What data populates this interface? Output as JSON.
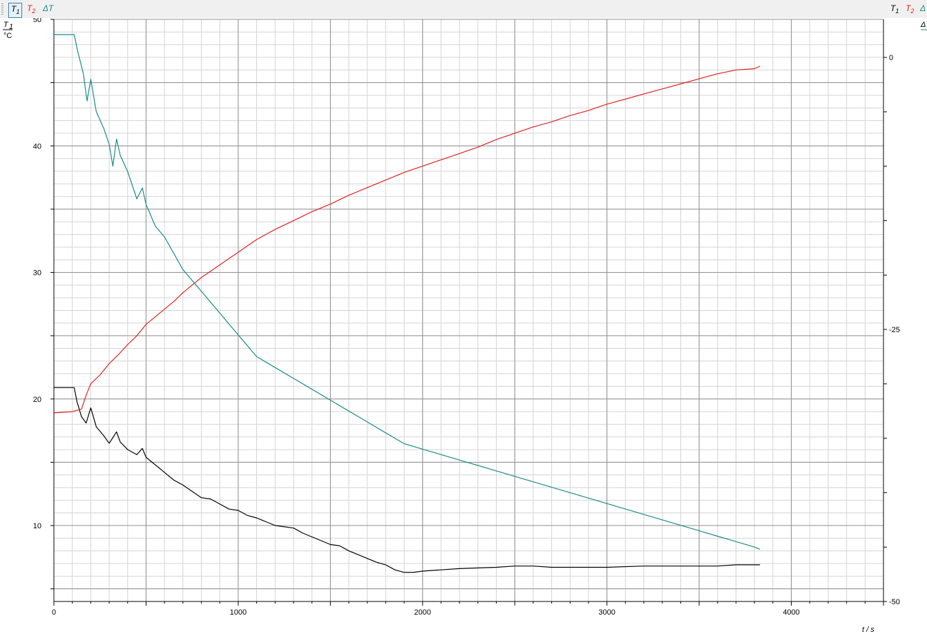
{
  "toolbar": {
    "left_items": [
      {
        "base": "T",
        "sub": "1",
        "color": "#000000",
        "selected": true
      },
      {
        "base": "T",
        "sub": "2",
        "color": "#e02020",
        "selected": false
      },
      {
        "base": "ΔT",
        "sub": "",
        "color": "#1a8a8a",
        "selected": false
      }
    ],
    "right_items": [
      {
        "base": "T",
        "sub": "1",
        "color": "#000000"
      },
      {
        "base": "T",
        "sub": "2",
        "color": "#e02020"
      },
      {
        "base": "Δ",
        "sub": "",
        "color": "#1a8a8a"
      }
    ]
  },
  "chart_data": {
    "type": "line",
    "xlabel": "t / s",
    "ylabel_left": {
      "symbol": "T",
      "sub": "1",
      "unit": "°C"
    },
    "ylabel_right": {
      "symbol": "Δ",
      "unit": ""
    },
    "xlim": [
      0,
      4500
    ],
    "ylim_left": [
      4,
      50
    ],
    "ylim_right": [
      -50,
      3.5
    ],
    "x_ticks": [
      0,
      1000,
      2000,
      3000,
      4000
    ],
    "y_ticks_left": [
      10,
      20,
      30,
      40,
      50
    ],
    "y_ticks_right": [
      -50,
      -25,
      0
    ],
    "grid": true,
    "series": [
      {
        "name": "T1",
        "axis": "left",
        "color": "#000000",
        "points": [
          [
            0,
            20.9
          ],
          [
            110,
            20.9
          ],
          [
            125,
            19.8
          ],
          [
            150,
            18.6
          ],
          [
            175,
            18.1
          ],
          [
            200,
            19.3
          ],
          [
            230,
            17.8
          ],
          [
            270,
            17.1
          ],
          [
            300,
            16.5
          ],
          [
            340,
            17.4
          ],
          [
            360,
            16.6
          ],
          [
            400,
            16.0
          ],
          [
            450,
            15.6
          ],
          [
            480,
            16.1
          ],
          [
            500,
            15.4
          ],
          [
            550,
            14.8
          ],
          [
            600,
            14.2
          ],
          [
            650,
            13.6
          ],
          [
            700,
            13.2
          ],
          [
            750,
            12.7
          ],
          [
            800,
            12.2
          ],
          [
            850,
            12.1
          ],
          [
            900,
            11.7
          ],
          [
            950,
            11.3
          ],
          [
            1000,
            11.2
          ],
          [
            1050,
            10.8
          ],
          [
            1100,
            10.6
          ],
          [
            1150,
            10.3
          ],
          [
            1200,
            10.0
          ],
          [
            1300,
            9.8
          ],
          [
            1350,
            9.4
          ],
          [
            1400,
            9.1
          ],
          [
            1450,
            8.8
          ],
          [
            1500,
            8.5
          ],
          [
            1550,
            8.4
          ],
          [
            1600,
            8.0
          ],
          [
            1650,
            7.7
          ],
          [
            1700,
            7.4
          ],
          [
            1750,
            7.1
          ],
          [
            1800,
            6.9
          ],
          [
            1850,
            6.5
          ],
          [
            1900,
            6.3
          ],
          [
            1950,
            6.3
          ],
          [
            2000,
            6.4
          ],
          [
            2100,
            6.5
          ],
          [
            2200,
            6.6
          ],
          [
            2400,
            6.7
          ],
          [
            2500,
            6.8
          ],
          [
            2600,
            6.8
          ],
          [
            2700,
            6.7
          ],
          [
            2800,
            6.7
          ],
          [
            3000,
            6.7
          ],
          [
            3200,
            6.8
          ],
          [
            3400,
            6.8
          ],
          [
            3600,
            6.8
          ],
          [
            3700,
            6.9
          ],
          [
            3830,
            6.9
          ]
        ]
      },
      {
        "name": "T2",
        "axis": "left",
        "color": "#e02020",
        "points": [
          [
            0,
            18.9
          ],
          [
            100,
            19.0
          ],
          [
            150,
            19.2
          ],
          [
            175,
            20.3
          ],
          [
            200,
            21.2
          ],
          [
            250,
            21.9
          ],
          [
            300,
            22.8
          ],
          [
            350,
            23.5
          ],
          [
            400,
            24.3
          ],
          [
            450,
            25.0
          ],
          [
            500,
            25.9
          ],
          [
            550,
            26.5
          ],
          [
            600,
            27.1
          ],
          [
            650,
            27.7
          ],
          [
            700,
            28.4
          ],
          [
            750,
            29.0
          ],
          [
            800,
            29.6
          ],
          [
            850,
            30.1
          ],
          [
            900,
            30.6
          ],
          [
            950,
            31.1
          ],
          [
            1000,
            31.6
          ],
          [
            1050,
            32.1
          ],
          [
            1100,
            32.6
          ],
          [
            1150,
            33.0
          ],
          [
            1200,
            33.4
          ],
          [
            1300,
            34.1
          ],
          [
            1400,
            34.8
          ],
          [
            1500,
            35.4
          ],
          [
            1600,
            36.1
          ],
          [
            1700,
            36.7
          ],
          [
            1800,
            37.3
          ],
          [
            1900,
            37.9
          ],
          [
            2000,
            38.4
          ],
          [
            2100,
            38.9
          ],
          [
            2200,
            39.4
          ],
          [
            2300,
            39.9
          ],
          [
            2400,
            40.5
          ],
          [
            2500,
            41.0
          ],
          [
            2600,
            41.5
          ],
          [
            2700,
            41.9
          ],
          [
            2800,
            42.4
          ],
          [
            2900,
            42.8
          ],
          [
            3000,
            43.3
          ],
          [
            3100,
            43.7
          ],
          [
            3200,
            44.1
          ],
          [
            3300,
            44.5
          ],
          [
            3400,
            44.9
          ],
          [
            3500,
            45.3
          ],
          [
            3600,
            45.7
          ],
          [
            3700,
            46.0
          ],
          [
            3800,
            46.1
          ],
          [
            3830,
            46.3
          ]
        ]
      },
      {
        "name": "ΔT",
        "axis": "right",
        "color": "#1a8a8a",
        "points": [
          [
            0,
            2.1
          ],
          [
            110,
            2.1
          ],
          [
            130,
            0.5
          ],
          [
            160,
            -1.5
          ],
          [
            180,
            -4.0
          ],
          [
            200,
            -2.0
          ],
          [
            230,
            -5.0
          ],
          [
            270,
            -6.5
          ],
          [
            300,
            -8.0
          ],
          [
            320,
            -10.0
          ],
          [
            340,
            -7.5
          ],
          [
            360,
            -9.0
          ],
          [
            400,
            -10.5
          ],
          [
            450,
            -13.0
          ],
          [
            480,
            -12.0
          ],
          [
            500,
            -13.5
          ],
          [
            550,
            -15.5
          ],
          [
            600,
            -16.5
          ],
          [
            650,
            -18.0
          ],
          [
            700,
            -19.5
          ],
          [
            750,
            -20.5
          ],
          [
            800,
            -21.5
          ],
          [
            850,
            -22.5
          ],
          [
            900,
            -23.5
          ],
          [
            950,
            -24.5
          ],
          [
            1000,
            -25.5
          ],
          [
            1050,
            -26.5
          ],
          [
            1100,
            -27.5
          ],
          [
            1150,
            -28.0
          ],
          [
            1200,
            -28.5
          ],
          [
            1300,
            -29.5
          ],
          [
            1400,
            -30.5
          ],
          [
            1500,
            -31.5
          ],
          [
            1600,
            -32.5
          ],
          [
            1700,
            -33.5
          ],
          [
            1800,
            -34.5
          ],
          [
            1900,
            -35.5
          ],
          [
            2000,
            -36.0
          ],
          [
            2100,
            -36.5
          ],
          [
            2200,
            -37.0
          ],
          [
            2300,
            -37.5
          ],
          [
            2400,
            -38.0
          ],
          [
            2500,
            -38.5
          ],
          [
            2600,
            -39.0
          ],
          [
            2700,
            -39.5
          ],
          [
            2800,
            -40.0
          ],
          [
            2900,
            -40.5
          ],
          [
            3000,
            -41.0
          ],
          [
            3100,
            -41.5
          ],
          [
            3200,
            -42.0
          ],
          [
            3300,
            -42.5
          ],
          [
            3400,
            -43.0
          ],
          [
            3500,
            -43.5
          ],
          [
            3600,
            -44.0
          ],
          [
            3700,
            -44.5
          ],
          [
            3800,
            -45.0
          ],
          [
            3830,
            -45.2
          ]
        ]
      }
    ]
  }
}
